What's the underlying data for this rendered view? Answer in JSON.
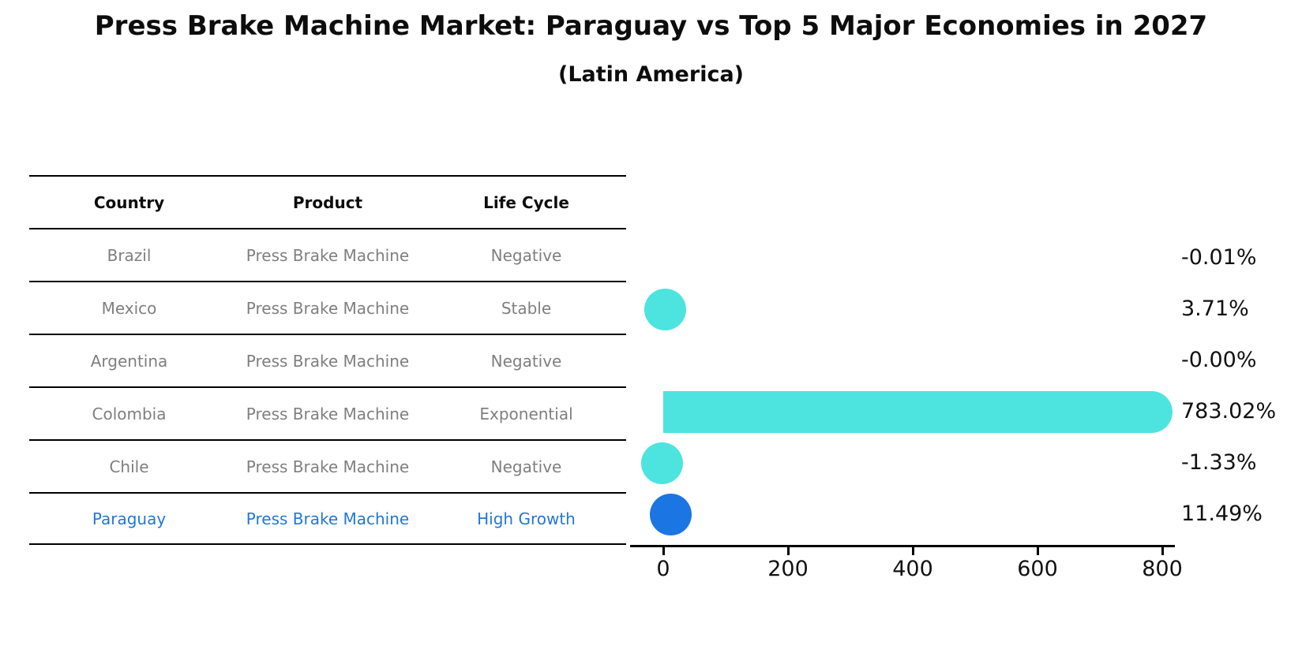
{
  "title": "Press Brake Machine Market: Paraguay vs Top 5 Major Economies in 2027",
  "subtitle": "(Latin America)",
  "table": {
    "headers": [
      "Country",
      "Product",
      "Life Cycle"
    ],
    "rows": [
      {
        "country": "Brazil",
        "product": "Press Brake Machine",
        "life_cycle": "Negative",
        "highlight": false
      },
      {
        "country": "Mexico",
        "product": "Press Brake Machine",
        "life_cycle": "Stable",
        "highlight": false
      },
      {
        "country": "Argentina",
        "product": "Press Brake Machine",
        "life_cycle": "Negative",
        "highlight": false
      },
      {
        "country": "Colombia",
        "product": "Press Brake Machine",
        "life_cycle": "Exponential",
        "highlight": false
      },
      {
        "country": "Chile",
        "product": "Press Brake Machine",
        "life_cycle": "Negative",
        "highlight": false
      },
      {
        "country": "Paraguay",
        "product": "Press Brake Machine",
        "life_cycle": "High Growth",
        "highlight": true
      }
    ]
  },
  "chart_data": {
    "type": "bar",
    "orientation": "horizontal",
    "title": "Press Brake Machine Market: Paraguay vs Top 5 Major Economies in 2027",
    "subtitle": "(Latin America)",
    "categories": [
      "Brazil",
      "Mexico",
      "Argentina",
      "Colombia",
      "Chile",
      "Paraguay"
    ],
    "values": [
      -0.01,
      3.71,
      -0.0,
      783.02,
      -1.33,
      11.49
    ],
    "value_labels": [
      "-0.01%",
      "3.71%",
      "-0.00%",
      "783.02%",
      "-1.33%",
      "11.49%"
    ],
    "unit": "percent growth",
    "xlabel": "",
    "ylabel": "",
    "xticks": [
      0,
      200,
      400,
      600,
      800
    ],
    "xlim": [
      -53,
      820
    ],
    "grid": false,
    "legend": false,
    "bar_color": "#4DE4E0",
    "highlight_color": "#1B75E3",
    "highlight_category": "Paraguay"
  },
  "colors": {
    "background": "#FFFFFF",
    "title_text": "#0D0D0D",
    "table_text": "#7F7F7F",
    "table_header_text": "#0D0D0D",
    "highlight_text": "#2377D3",
    "axis": "#000000",
    "value_label_text": "#111111"
  }
}
